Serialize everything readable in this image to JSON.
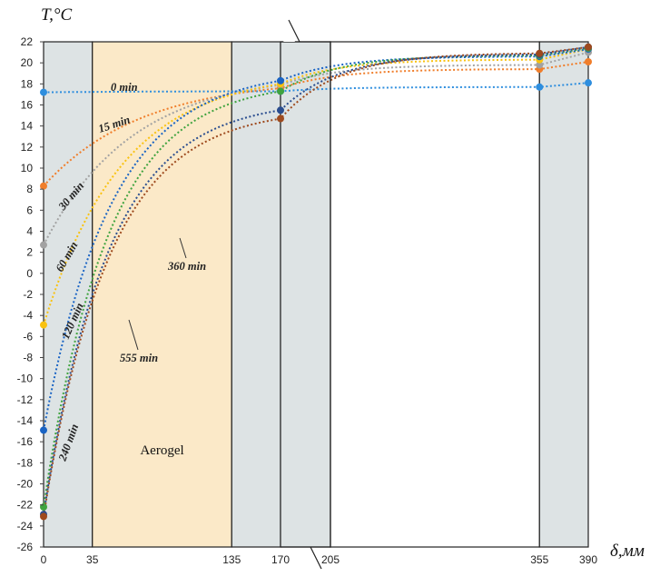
{
  "chart_data": {
    "type": "line",
    "title": "",
    "ylabel": "T,°C",
    "xlabel": "δ,мм",
    "ylim": [
      -26,
      22
    ],
    "yticks": [
      22,
      20,
      18,
      16,
      14,
      12,
      10,
      8,
      6,
      4,
      2,
      0,
      -2,
      -4,
      -6,
      -8,
      -10,
      -12,
      -14,
      -16,
      -18,
      -20,
      -22,
      -24,
      -26
    ],
    "xticks": [
      "0",
      "35",
      "135",
      "170",
      "205",
      "355",
      "390"
    ],
    "axis_break": "between 170 and 205",
    "regions": [
      {
        "name": "layer-1",
        "from": 0,
        "to": 35,
        "color": "#dde3e4",
        "label": ""
      },
      {
        "name": "aerogel",
        "from": 35,
        "to": 135,
        "color": "#fbe9c8",
        "label": "Aerogel"
      },
      {
        "name": "layer-3",
        "from": 135,
        "to": 170,
        "color": "#dde3e4",
        "label": ""
      },
      {
        "name": "layer-4",
        "from": 170,
        "to": 205,
        "color": "#dde3e4",
        "label": ""
      },
      {
        "name": "layer-5",
        "from": 205,
        "to": 355,
        "color": "#ffffff",
        "label": ""
      },
      {
        "name": "layer-6",
        "from": 355,
        "to": 390,
        "color": "#dde3e4",
        "label": ""
      }
    ],
    "series": [
      {
        "name": "0 min",
        "color": "#2e8ede",
        "x": [
          0,
          170,
          355,
          390
        ],
        "y": [
          17.2,
          17.3,
          17.7,
          18.1
        ]
      },
      {
        "name": "15 min",
        "color": "#f07e2b",
        "x": [
          0,
          170,
          355,
          390
        ],
        "y": [
          8.3,
          17.6,
          19.4,
          20.1
        ]
      },
      {
        "name": "30 min",
        "color": "#a2a2a2",
        "x": [
          0,
          170,
          355,
          390
        ],
        "y": [
          2.7,
          17.9,
          19.8,
          21.0
        ]
      },
      {
        "name": "60 min",
        "color": "#f9c20f",
        "x": [
          0,
          170,
          355,
          390
        ],
        "y": [
          -4.9,
          18.0,
          20.3,
          21.3
        ]
      },
      {
        "name": "120 min",
        "color": "#1a64c4",
        "x": [
          0,
          170,
          355,
          390
        ],
        "y": [
          -14.9,
          18.3,
          20.6,
          21.3
        ]
      },
      {
        "name": "240 min",
        "color": "#3fa33f",
        "x": [
          0,
          170,
          355,
          390
        ],
        "y": [
          -22.2,
          17.3,
          20.7,
          21.4
        ]
      },
      {
        "name": "360 min",
        "color": "#2a4d8f",
        "x": [
          0,
          170,
          355,
          390
        ],
        "y": [
          -22.9,
          15.5,
          20.8,
          21.5
        ]
      },
      {
        "name": "555 min",
        "color": "#9e4a1e",
        "x": [
          0,
          170,
          355,
          390
        ],
        "y": [
          -23.1,
          14.7,
          20.9,
          21.5
        ]
      }
    ],
    "annotations": [
      "0 min",
      "15 min",
      "30 min",
      "60 min",
      "120 min",
      "240 min",
      "360 min",
      "555 min"
    ]
  }
}
